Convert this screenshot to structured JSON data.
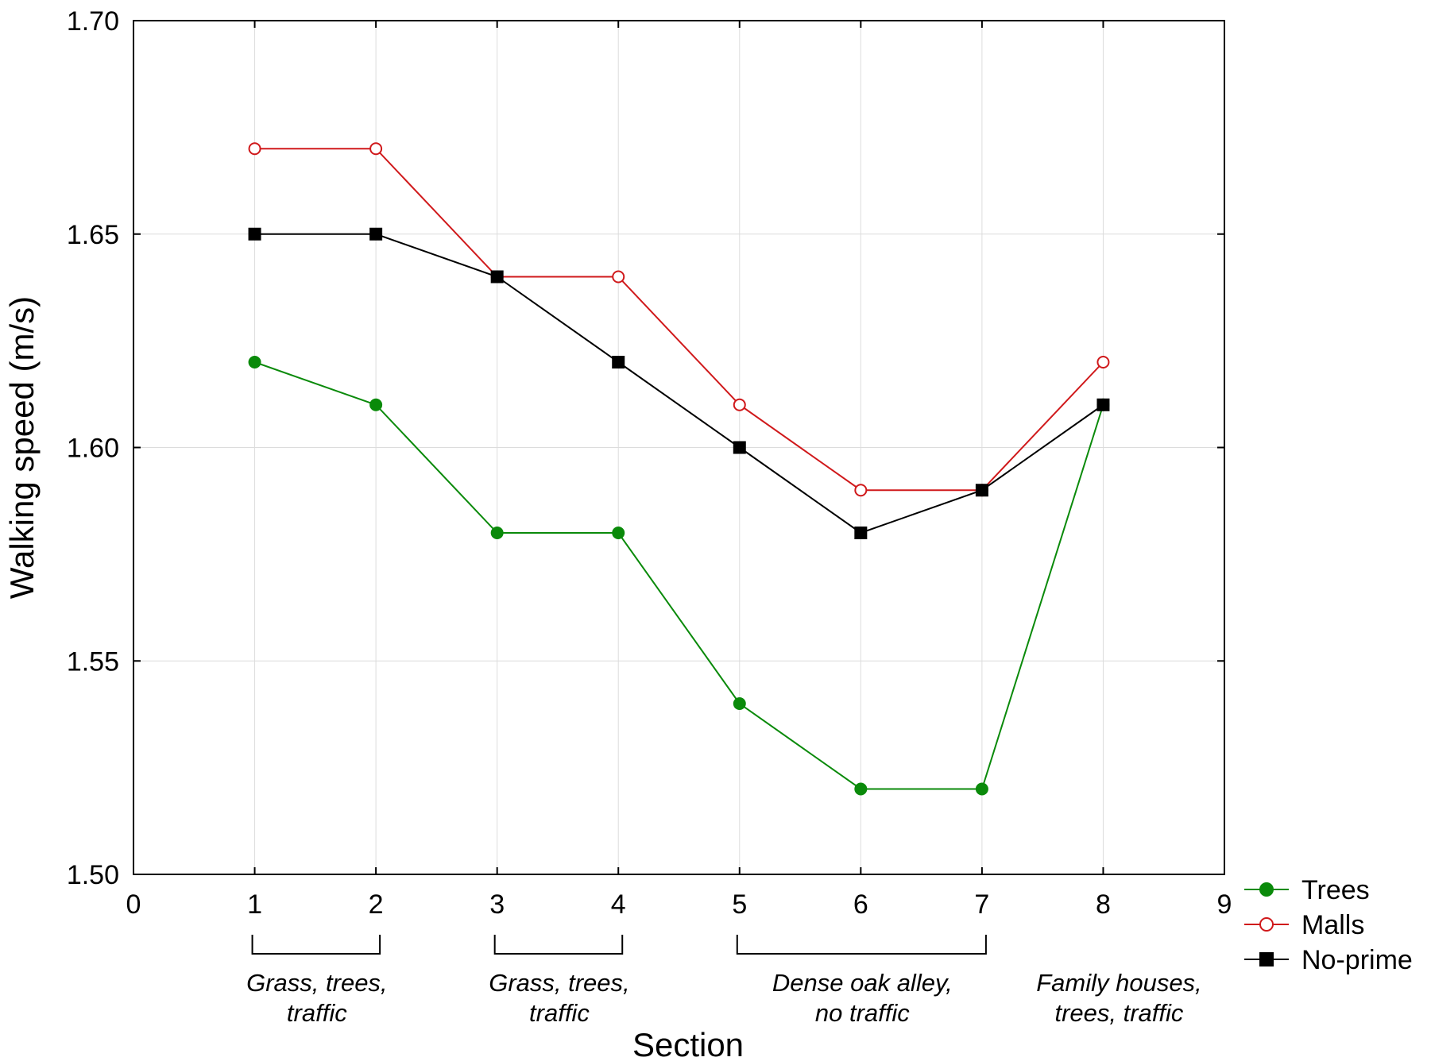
{
  "chart_data": {
    "type": "line",
    "title": "",
    "xlabel": "Section",
    "ylabel": "Walking speed (m/s)",
    "xlim": [
      0,
      9
    ],
    "ylim": [
      1.5,
      1.7
    ],
    "xticks": [
      "0",
      "1",
      "2",
      "3",
      "4",
      "5",
      "6",
      "7",
      "8",
      "9"
    ],
    "yticks": [
      "1.50",
      "1.55",
      "1.60",
      "1.65",
      "1.70"
    ],
    "grid": true,
    "legend_position": "bottom-right outside",
    "x": [
      1,
      2,
      3,
      4,
      5,
      6,
      7,
      8
    ],
    "series": [
      {
        "name": "Trees",
        "color": "#0a8a0a",
        "marker": "filled-circle",
        "values": [
          1.62,
          1.61,
          1.58,
          1.58,
          1.54,
          1.52,
          1.52,
          1.61
        ]
      },
      {
        "name": "Malls",
        "color": "#d0191b",
        "marker": "open-circle",
        "values": [
          1.67,
          1.67,
          1.64,
          1.64,
          1.61,
          1.59,
          1.59,
          1.62
        ]
      },
      {
        "name": "No-prime",
        "color": "#000000",
        "marker": "filled-square",
        "values": [
          1.65,
          1.65,
          1.64,
          1.62,
          1.6,
          1.58,
          1.59,
          1.61
        ]
      }
    ],
    "annotations": [
      {
        "from": 1,
        "to": 2,
        "lines": [
          "Grass, trees,",
          "traffic"
        ]
      },
      {
        "from": 3,
        "to": 4,
        "lines": [
          "Grass, trees,",
          "traffic"
        ]
      },
      {
        "from": 5,
        "to": 7,
        "lines": [
          "Dense oak alley,",
          "no traffic"
        ]
      },
      {
        "from": 8,
        "to": 8,
        "lines": [
          "Family houses,",
          "trees, traffic"
        ]
      }
    ]
  }
}
